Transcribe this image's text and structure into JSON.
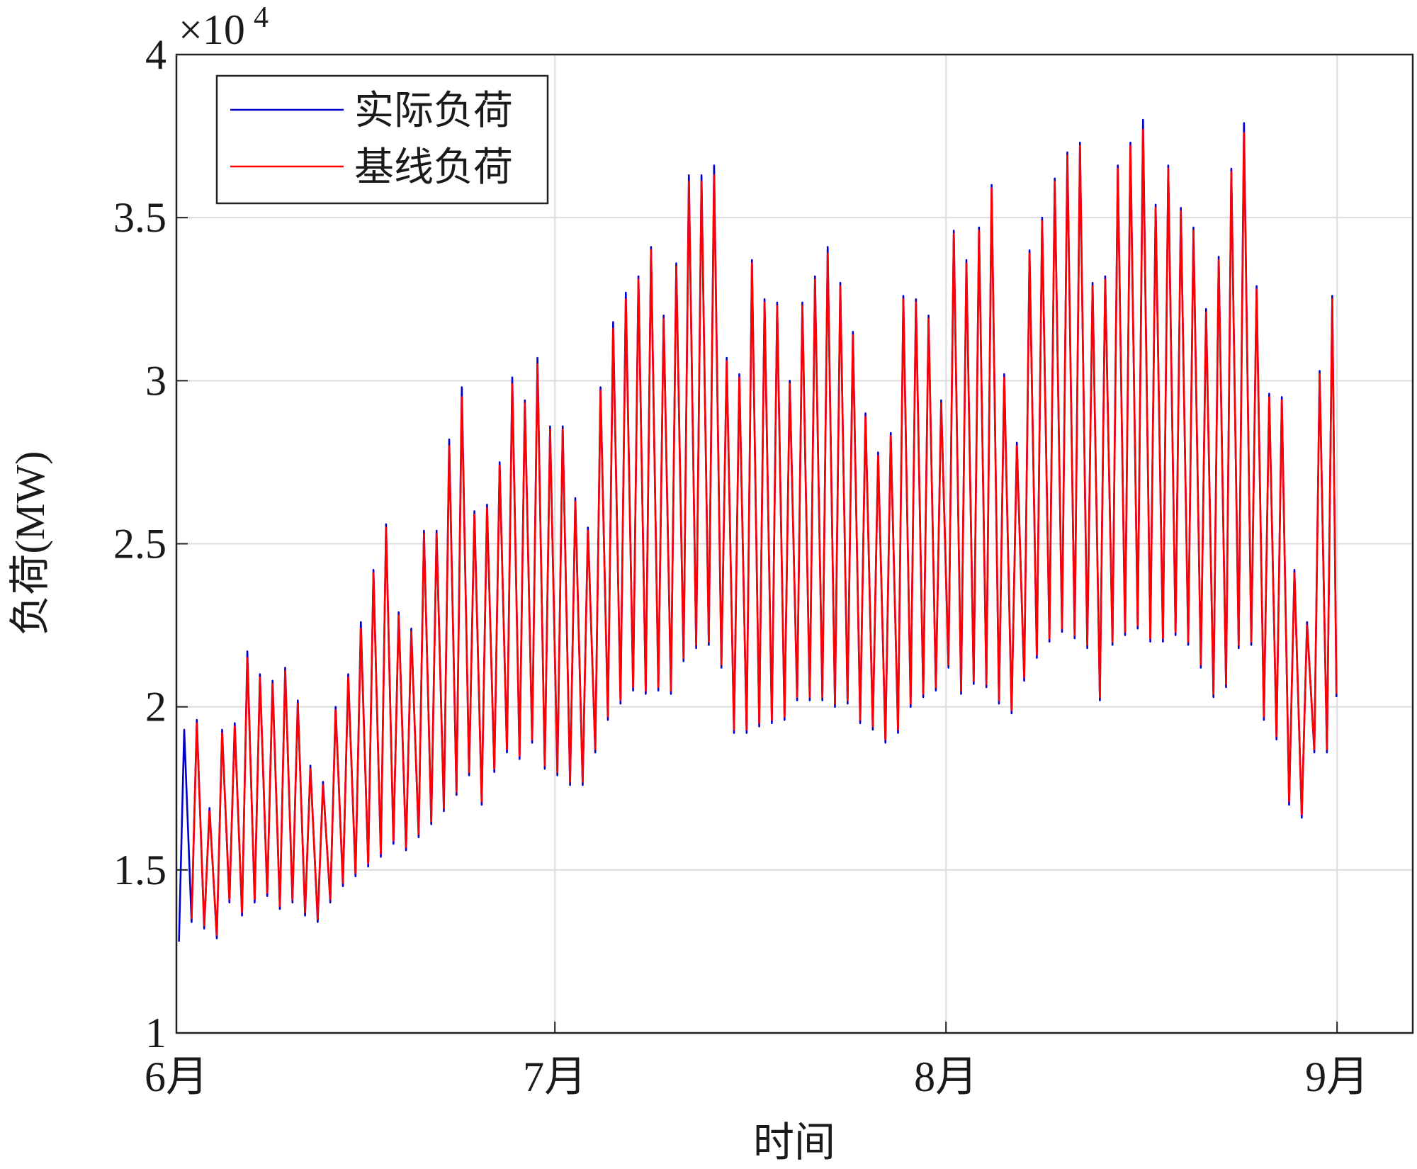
{
  "chart_data": {
    "type": "line",
    "xlabel": "时间",
    "ylabel": "负荷(MW)",
    "y_multiplier": {
      "base": "×10",
      "exponent": "4"
    },
    "xlim": [
      0,
      98
    ],
    "ylim": [
      10000,
      40000
    ],
    "xticks": [
      {
        "value": 0,
        "label": "6月"
      },
      {
        "value": 30,
        "label": "7月"
      },
      {
        "value": 61,
        "label": "8月"
      },
      {
        "value": 92,
        "label": "9月"
      }
    ],
    "yticks": [
      {
        "value": 10000,
        "label": "1"
      },
      {
        "value": 15000,
        "label": "1.5"
      },
      {
        "value": 20000,
        "label": "2"
      },
      {
        "value": 25000,
        "label": "2.5"
      },
      {
        "value": 30000,
        "label": "3"
      },
      {
        "value": 35000,
        "label": "3.5"
      },
      {
        "value": 40000,
        "label": "4"
      }
    ],
    "grid": true,
    "legend": "upper left",
    "x": [
      0.2,
      0.62,
      1.2,
      1.62,
      2.2,
      2.62,
      3.2,
      3.62,
      4.2,
      4.62,
      5.2,
      5.62,
      6.2,
      6.62,
      7.2,
      7.62,
      8.2,
      8.62,
      9.2,
      9.62,
      10.2,
      10.62,
      11.2,
      11.62,
      12.2,
      12.62,
      13.2,
      13.62,
      14.2,
      14.62,
      15.2,
      15.62,
      16.2,
      16.62,
      17.2,
      17.62,
      18.2,
      18.62,
      19.2,
      19.62,
      20.2,
      20.62,
      21.2,
      21.62,
      22.2,
      22.62,
      23.2,
      23.62,
      24.2,
      24.62,
      25.2,
      25.62,
      26.2,
      26.62,
      27.2,
      27.62,
      28.2,
      28.62,
      29.2,
      29.62,
      30.2,
      30.62,
      31.2,
      31.62,
      32.2,
      32.62,
      33.2,
      33.62,
      34.2,
      34.62,
      35.2,
      35.62,
      36.2,
      36.62,
      37.2,
      37.62,
      38.2,
      38.62,
      39.2,
      39.62,
      40.2,
      40.62,
      41.2,
      41.62,
      42.2,
      42.62,
      43.2,
      43.62,
      44.2,
      44.62,
      45.2,
      45.62,
      46.2,
      46.62,
      47.2,
      47.62,
      48.2,
      48.62,
      49.2,
      49.62,
      50.2,
      50.62,
      51.2,
      51.62,
      52.2,
      52.62,
      53.2,
      53.62,
      54.2,
      54.62,
      55.2,
      55.62,
      56.2,
      56.62,
      57.2,
      57.62,
      58.2,
      58.62,
      59.2,
      59.62,
      60.2,
      60.62,
      61.2,
      61.62,
      62.2,
      62.62,
      63.2,
      63.62,
      64.2,
      64.62,
      65.2,
      65.62,
      66.2,
      66.62,
      67.2,
      67.62,
      68.2,
      68.62,
      69.2,
      69.62,
      70.2,
      70.62,
      71.2,
      71.62,
      72.2,
      72.62,
      73.2,
      73.62,
      74.2,
      74.62,
      75.2,
      75.62,
      76.2,
      76.62,
      77.2,
      77.62,
      78.2,
      78.62,
      79.2,
      79.62,
      80.2,
      80.62,
      81.2,
      81.62,
      82.2,
      82.62,
      83.2,
      83.62,
      84.2,
      84.62,
      85.2,
      85.62,
      86.2,
      86.62,
      87.2,
      87.62,
      88.2,
      88.62,
      89.2,
      89.62,
      90.2,
      90.62,
      91.2,
      91.62,
      91.95
    ],
    "series": [
      {
        "name": "实际负荷",
        "color": "#0000cc",
        "values": [
          12800,
          19300,
          13400,
          19600,
          13200,
          16900,
          12900,
          19300,
          14000,
          19500,
          13600,
          21700,
          14000,
          21000,
          14200,
          20800,
          13800,
          21200,
          14000,
          20200,
          13600,
          18200,
          13400,
          17700,
          14000,
          20000,
          14500,
          21000,
          14800,
          22600,
          15100,
          24200,
          15400,
          25600,
          15800,
          22900,
          15600,
          22400,
          16000,
          25400,
          16400,
          25400,
          16800,
          28200,
          17300,
          29800,
          17900,
          26000,
          17000,
          26200,
          18000,
          27500,
          18600,
          30100,
          18400,
          29400,
          18900,
          30700,
          18100,
          28600,
          17900,
          28600,
          17600,
          26400,
          17600,
          25500,
          18600,
          29800,
          19600,
          31800,
          20100,
          32700,
          20500,
          33200,
          20400,
          34100,
          20500,
          32000,
          20400,
          33600,
          21400,
          36300,
          21800,
          36300,
          21900,
          36600,
          21200,
          30700,
          19200,
          30200,
          19200,
          33700,
          19400,
          32500,
          19500,
          32400,
          19600,
          30000,
          20200,
          32400,
          20200,
          33200,
          20200,
          34100,
          20000,
          33000,
          20100,
          31500,
          19500,
          29000,
          19300,
          27800,
          18900,
          28400,
          19200,
          32600,
          20000,
          32500,
          20300,
          32000,
          20500,
          29400,
          21200,
          34600,
          20400,
          33700,
          20700,
          34700,
          20600,
          36000,
          20100,
          30200,
          19800,
          28100,
          20800,
          34000,
          21500,
          35000,
          22000,
          36200,
          22300,
          37000,
          22100,
          37300,
          21800,
          33000,
          20200,
          33200,
          21900,
          36600,
          22200,
          37300,
          22400,
          38000,
          22000,
          35400,
          22000,
          36600,
          22200,
          35300,
          21900,
          34700,
          21200,
          32200,
          20300,
          33800,
          20600,
          36500,
          21800,
          37900,
          21900,
          32900,
          19600,
          29600,
          19000,
          29500,
          17000,
          24200,
          16600,
          22600,
          18600,
          30300,
          18600,
          32600,
          20300
        ]
      },
      {
        "name": "基线负荷",
        "color": "#ff0000",
        "values": [
          null,
          null,
          13500,
          19500,
          13300,
          16800,
          13000,
          19200,
          14100,
          19400,
          13700,
          21500,
          14100,
          20900,
          14300,
          20700,
          13900,
          21100,
          14100,
          20100,
          13700,
          18100,
          13500,
          17600,
          14100,
          19900,
          14600,
          20900,
          14900,
          22400,
          15200,
          24100,
          15500,
          25500,
          15900,
          22800,
          15700,
          22300,
          16100,
          25300,
          16500,
          25300,
          16900,
          28000,
          17400,
          29500,
          18000,
          25900,
          17100,
          26100,
          18100,
          27400,
          18700,
          29900,
          18500,
          29300,
          19000,
          30500,
          18200,
          28500,
          18000,
          28500,
          17700,
          26300,
          17700,
          25400,
          18700,
          29700,
          19700,
          31600,
          20200,
          32500,
          20600,
          33100,
          20500,
          34000,
          20600,
          31900,
          20500,
          33500,
          21500,
          36100,
          21900,
          36100,
          22000,
          36300,
          21300,
          30600,
          19300,
          30100,
          19300,
          33600,
          19500,
          32400,
          19600,
          32300,
          19700,
          29900,
          20300,
          32300,
          20300,
          33100,
          20300,
          33900,
          20100,
          32900,
          20200,
          31400,
          19600,
          28900,
          19400,
          27700,
          19000,
          28300,
          19300,
          32500,
          20100,
          32400,
          20400,
          31900,
          20600,
          29300,
          21300,
          34500,
          20500,
          33600,
          20800,
          34600,
          20700,
          35900,
          20200,
          30100,
          19900,
          28000,
          20900,
          33900,
          21600,
          34900,
          22100,
          36100,
          22400,
          36900,
          22200,
          37200,
          21900,
          32900,
          20300,
          33100,
          22000,
          36500,
          22300,
          37200,
          22500,
          37700,
          22100,
          35300,
          22100,
          36500,
          22300,
          35200,
          22000,
          34600,
          21300,
          32100,
          20400,
          33700,
          20700,
          36400,
          21900,
          37600,
          22000,
          32800,
          19700,
          29500,
          19100,
          29400,
          17100,
          24100,
          16700,
          22500,
          18700,
          30200,
          18700,
          32500,
          20400
        ]
      }
    ]
  }
}
